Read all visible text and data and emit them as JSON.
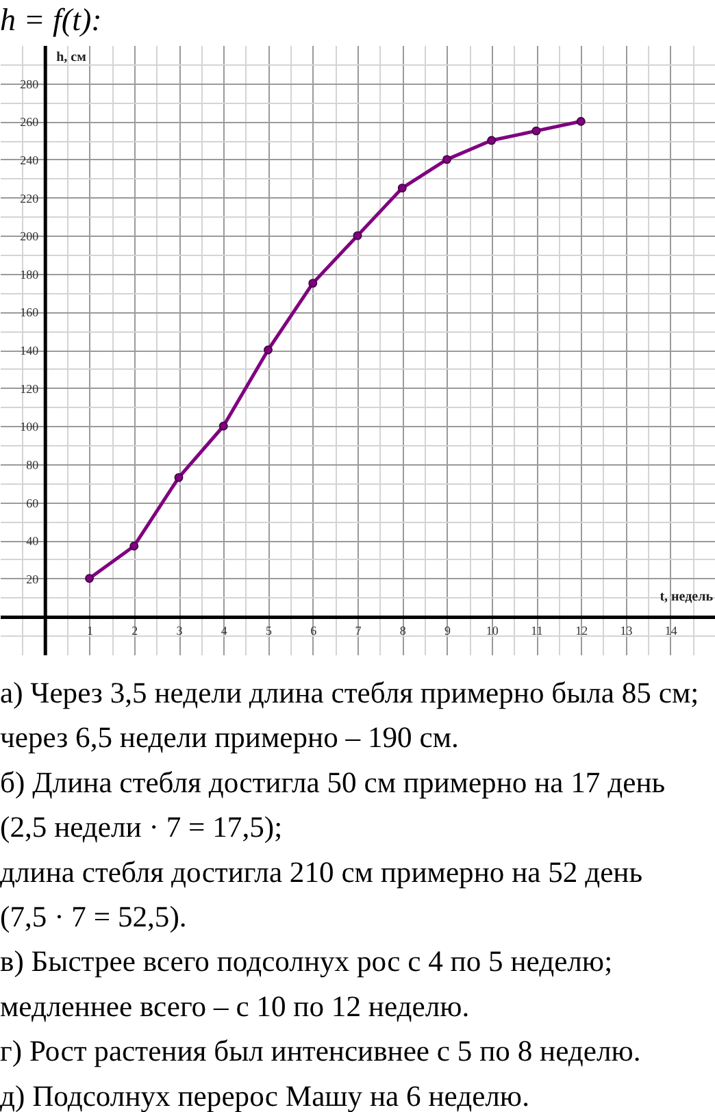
{
  "chart_data": {
    "type": "line",
    "title": "h = f(t):",
    "xlabel": "t, недель",
    "ylabel": "h, см",
    "x": [
      1,
      2,
      3,
      4,
      5,
      6,
      7,
      8,
      9,
      10,
      11,
      12
    ],
    "values": [
      20,
      37,
      73,
      100,
      140,
      175,
      200,
      225,
      240,
      250,
      255,
      260
    ],
    "color": "#800080",
    "marker": "circle",
    "line_style": "solid",
    "grid": true,
    "xlim": [
      -1,
      15
    ],
    "ylim": [
      -20,
      300
    ],
    "xticks": [
      {
        "value": -0.5,
        "label": null
      },
      {
        "value": 0.5,
        "label": null
      },
      1,
      {
        "value": 1.5,
        "label": null
      },
      2,
      {
        "value": 2.5,
        "label": null
      },
      3,
      {
        "value": 3.5,
        "label": null
      },
      4,
      {
        "value": 4.5,
        "label": null
      },
      5,
      {
        "value": 5.5,
        "label": null
      },
      6,
      {
        "value": 6.5,
        "label": null
      },
      7,
      {
        "value": 7.5,
        "label": null
      },
      8,
      {
        "value": 8.5,
        "label": null
      },
      9,
      {
        "value": 9.5,
        "label": null
      },
      10,
      {
        "value": 10.5,
        "label": null
      },
      11,
      {
        "value": 11.5,
        "label": null
      },
      12,
      {
        "value": 12.5,
        "label": null
      },
      13,
      {
        "value": 13.5,
        "label": null
      },
      14,
      {
        "value": 14.5,
        "label": null
      }
    ],
    "yticks": [
      {
        "value": -10,
        "label": null
      },
      {
        "value": 10,
        "label": null
      },
      20,
      {
        "value": 30,
        "label": null
      },
      40,
      {
        "value": 50,
        "label": null
      },
      60,
      {
        "value": 70,
        "label": null
      },
      80,
      {
        "value": 90,
        "label": null
      },
      100,
      {
        "value": 110,
        "label": null
      },
      120,
      {
        "value": 130,
        "label": null
      },
      140,
      {
        "value": 150,
        "label": null
      },
      160,
      {
        "value": 170,
        "label": null
      },
      180,
      {
        "value": 190,
        "label": null
      },
      200,
      {
        "value": 210,
        "label": null
      },
      220,
      {
        "value": 230,
        "label": null
      },
      240,
      {
        "value": 250,
        "label": null
      },
      260,
      {
        "value": 270,
        "label": null
      },
      280,
      {
        "value": 290,
        "label": null
      }
    ],
    "annotations": [
      "а) Через 3,5 недели длина стебля примерно была 85 см;",
      "через 6,5 недели примерно – 190 см.",
      "б) Длина стебля достигла 50 см примерно на 17 день",
      "(2,5 недели · 7 = 17,5);",
      "длина стебля достигла 210 см примерно на 52 день",
      "(7,5 · 7 = 52,5).",
      "в) Быстрее всего подсолнух рос с 4 по 5 неделю;",
      "медленнее всего – с 10 по 12 неделю.",
      "г) Рост растения был интенсивнее с 5 по 8 неделю.",
      "д) Подсолнух перерос Машу на 6 неделю."
    ]
  }
}
